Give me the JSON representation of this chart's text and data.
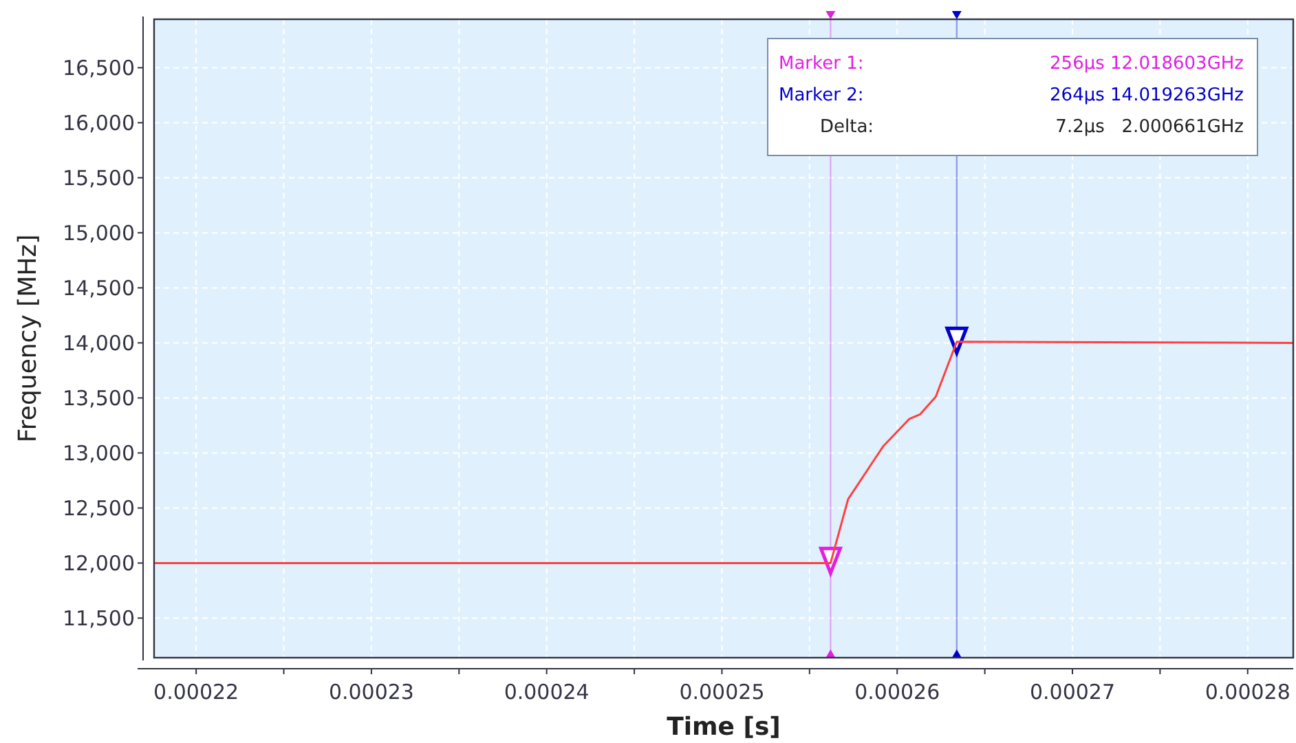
{
  "chart_data": {
    "type": "line",
    "xlabel": "Time [s]",
    "ylabel": "Frequency [MHz]",
    "xlim": [
      0.0002176,
      0.0002826
    ],
    "ylim": [
      11140,
      16940
    ],
    "xticks": [
      {
        "value": 0.00022,
        "label": "0.00022"
      },
      {
        "value": 0.000225,
        "label": null
      },
      {
        "value": 0.00023,
        "label": "0.00023"
      },
      {
        "value": 0.000235,
        "label": null
      },
      {
        "value": 0.00024,
        "label": "0.00024"
      },
      {
        "value": 0.000245,
        "label": null
      },
      {
        "value": 0.00025,
        "label": "0.00025"
      },
      {
        "value": 0.000255,
        "label": null
      },
      {
        "value": 0.00026,
        "label": "0.00026"
      },
      {
        "value": 0.000265,
        "label": null
      },
      {
        "value": 0.00027,
        "label": "0.00027"
      },
      {
        "value": 0.000275,
        "label": null
      },
      {
        "value": 0.00028,
        "label": "0.00028"
      }
    ],
    "yticks": [
      {
        "value": 11500,
        "label": "11,500"
      },
      {
        "value": 12000,
        "label": "12,000"
      },
      {
        "value": 12500,
        "label": "12,500"
      },
      {
        "value": 13000,
        "label": "13,000"
      },
      {
        "value": 13500,
        "label": "13,500"
      },
      {
        "value": 14000,
        "label": "14,000"
      },
      {
        "value": 14500,
        "label": "14,500"
      },
      {
        "value": 15000,
        "label": "15,000"
      },
      {
        "value": 15500,
        "label": "15,500"
      },
      {
        "value": 16000,
        "label": "16,000"
      },
      {
        "value": 16500,
        "label": "16,500"
      }
    ],
    "grid": true,
    "series": [
      {
        "color": "#ff4040",
        "x": [
          0.0002176,
          0.0002562,
          0.0002572,
          0.0002592,
          0.0002607,
          0.0002613,
          0.0002622,
          0.0002634,
          0.0002826
        ],
        "values": [
          12000,
          12000,
          12580,
          13060,
          13310,
          13350,
          13510,
          14010,
          14000
        ]
      },
      {
        "type": "scatter",
        "marker": "triangle",
        "colors": [
          "#e020e0",
          "#0000cc"
        ],
        "x": [
          0.0002562,
          0.0002634
        ],
        "values": [
          12020,
          14020
        ]
      }
    ],
    "ref_lines": [
      {
        "axis": "x",
        "value": 0.0002562,
        "label": null,
        "color": "#e020e0"
      },
      {
        "axis": "x",
        "value": 0.0002634,
        "label": null,
        "color": "#0000cc"
      }
    ],
    "annotations": [
      "Marker 1:",
      "256μs 12.018603GHz",
      "Marker 2:",
      "264μs 14.019263GHz",
      "Delta:",
      "7.2μs   2.000661GHz"
    ]
  }
}
